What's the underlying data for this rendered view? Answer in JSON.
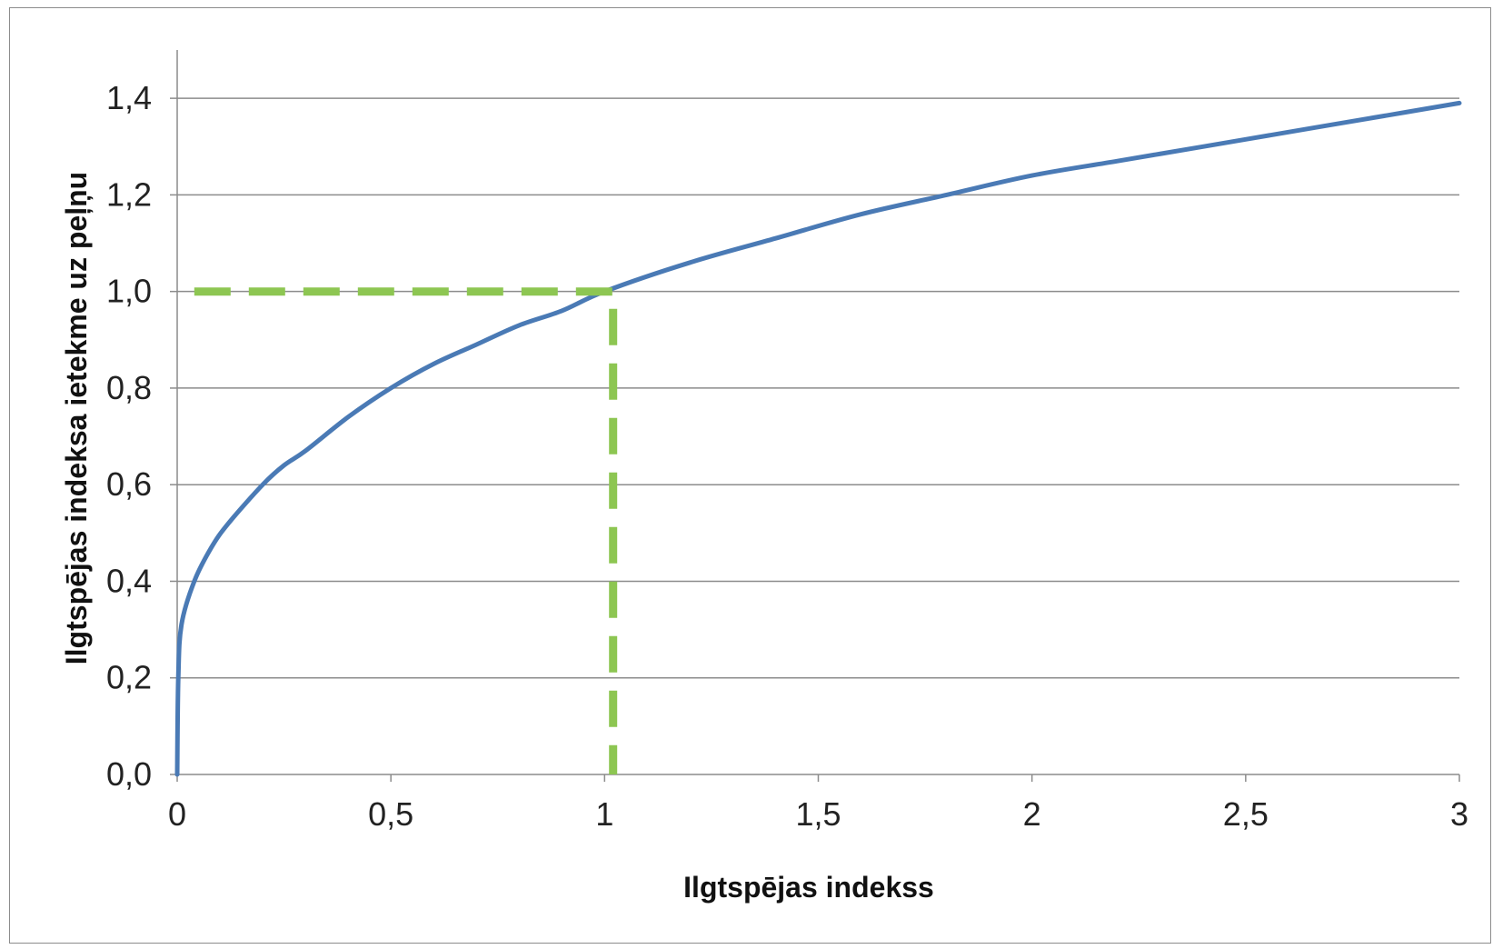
{
  "chart_data": {
    "type": "line",
    "title": "",
    "xlabel": "Ilgtspējas indekss",
    "ylabel": "Ilgtspējas indeksa ietekme uz peļņu",
    "xlim": [
      0,
      3
    ],
    "ylim": [
      0,
      1.5
    ],
    "x_ticks": [
      "0",
      "0,5",
      "1",
      "1,5",
      "2",
      "2,5",
      "3"
    ],
    "x_tick_values": [
      0,
      0.5,
      1,
      1.5,
      2,
      2.5,
      3
    ],
    "y_ticks": [
      "0,0",
      "0,2",
      "0,4",
      "0,6",
      "0,8",
      "1,0",
      "1,2",
      "1,4"
    ],
    "y_tick_values": [
      0,
      0.2,
      0.4,
      0.6,
      0.8,
      1.0,
      1.2,
      1.4
    ],
    "grid": "horizontal",
    "legend": "none",
    "series": [
      {
        "color": "#4a7ab5",
        "style": "solid",
        "points": [
          [
            0,
            0
          ],
          [
            0.0025,
            0.2
          ],
          [
            0.01,
            0.31
          ],
          [
            0.04,
            0.4
          ],
          [
            0.08,
            0.47
          ],
          [
            0.12,
            0.52
          ],
          [
            0.2,
            0.6
          ],
          [
            0.25,
            0.64
          ],
          [
            0.3,
            0.67
          ],
          [
            0.4,
            0.74
          ],
          [
            0.5,
            0.8
          ],
          [
            0.6,
            0.85
          ],
          [
            0.7,
            0.89
          ],
          [
            0.8,
            0.93
          ],
          [
            0.9,
            0.96
          ],
          [
            1.0,
            1.0
          ],
          [
            1.2,
            1.06
          ],
          [
            1.4,
            1.11
          ],
          [
            1.6,
            1.16
          ],
          [
            1.8,
            1.2
          ],
          [
            2.0,
            1.24
          ],
          [
            2.2,
            1.27
          ],
          [
            2.4,
            1.3
          ],
          [
            2.6,
            1.33
          ],
          [
            2.8,
            1.36
          ],
          [
            3.0,
            1.39
          ]
        ]
      },
      {
        "color": "#8dc652",
        "style": "dashed",
        "points": [
          [
            0.04,
            1.0
          ],
          [
            1.02,
            1.0
          ],
          [
            1.02,
            0
          ]
        ]
      }
    ]
  },
  "colors": {
    "grid": "#8c8c8c",
    "axis": "#8c8c8c",
    "frame": "#8c8c8c"
  }
}
